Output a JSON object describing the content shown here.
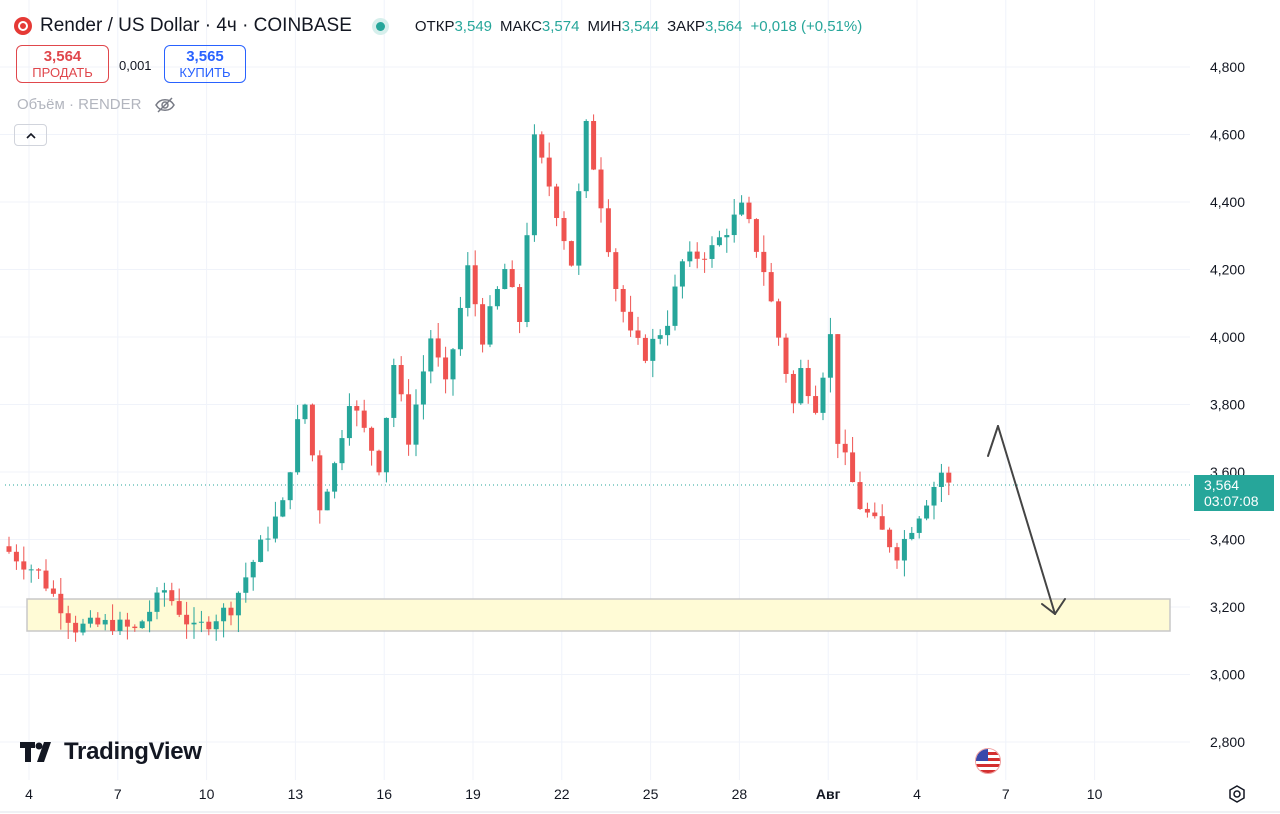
{
  "header": {
    "title": "Render / US Dollar · 4ч · COINBASE",
    "ohlc": [
      {
        "k": "ОТКР",
        "v": "3,549"
      },
      {
        "k": "МАКС",
        "v": "3,574"
      },
      {
        "k": "МИН",
        "v": "3,544"
      },
      {
        "k": "ЗАКР",
        "v": "3,564"
      }
    ],
    "change": "+0,018 (+0,51%)"
  },
  "trade": {
    "sell_price": "3,564",
    "sell_label": "ПРОДАТЬ",
    "spread": "0,001",
    "buy_price": "3,565",
    "buy_label": "КУПИТЬ"
  },
  "volume_label": "Объём · RENDER",
  "last_price": {
    "price": "3,564",
    "countdown": "03:07:08"
  },
  "brand": "TradingView",
  "colors": {
    "up": "#26a69a",
    "down": "#ef5350",
    "zone_fill": "#fffbd6",
    "arrow": "#4a4a4a"
  },
  "icons": [
    "hide-eye-icon",
    "chevron-up-icon",
    "us-flag-icon",
    "settings-icon"
  ],
  "chart_data": {
    "type": "candlestick",
    "symbol": "Render / US Dollar",
    "interval": "4ч",
    "y_ticks": [
      "2,800",
      "3,000",
      "3,200",
      "3,400",
      "3,600",
      "3,800",
      "4,000",
      "4,200",
      "4,400",
      "4,600",
      "4,800"
    ],
    "ylim": [
      2.7,
      4.9
    ],
    "x_ticks": [
      "4",
      "7",
      "10",
      "13",
      "16",
      "19",
      "22",
      "25",
      "28",
      "Авг",
      "4",
      "7",
      "10"
    ],
    "path_points": [
      [
        0,
        3.38
      ],
      [
        5,
        3.3
      ],
      [
        10,
        3.14
      ],
      [
        15,
        3.15
      ],
      [
        18,
        3.13
      ],
      [
        22,
        3.25
      ],
      [
        26,
        3.13
      ],
      [
        31,
        3.2
      ],
      [
        35,
        3.38
      ],
      [
        38,
        3.5
      ],
      [
        40,
        3.74
      ],
      [
        41,
        3.8
      ],
      [
        43,
        3.5
      ],
      [
        45,
        3.62
      ],
      [
        47,
        3.82
      ],
      [
        51,
        3.62
      ],
      [
        53,
        3.92
      ],
      [
        55,
        3.7
      ],
      [
        58,
        4.0
      ],
      [
        60,
        3.85
      ],
      [
        63,
        4.2
      ],
      [
        65,
        4.0
      ],
      [
        68,
        4.2
      ],
      [
        70,
        4.05
      ],
      [
        72,
        4.58
      ],
      [
        74,
        4.45
      ],
      [
        77,
        4.22
      ],
      [
        79,
        4.62
      ],
      [
        81,
        4.4
      ],
      [
        83,
        4.15
      ],
      [
        85,
        4.0
      ],
      [
        87,
        3.95
      ],
      [
        90,
        4.05
      ],
      [
        92,
        4.22
      ],
      [
        96,
        4.26
      ],
      [
        100,
        4.38
      ],
      [
        101,
        4.33
      ],
      [
        103,
        4.2
      ],
      [
        105,
        4.0
      ],
      [
        107,
        3.8
      ],
      [
        108,
        3.9
      ],
      [
        110,
        3.8
      ],
      [
        112,
        4.0
      ],
      [
        113,
        3.7
      ],
      [
        116,
        3.5
      ],
      [
        119,
        3.42
      ],
      [
        121,
        3.36
      ],
      [
        124,
        3.48
      ],
      [
        127,
        3.6
      ],
      [
        128,
        3.56
      ]
    ]
  }
}
